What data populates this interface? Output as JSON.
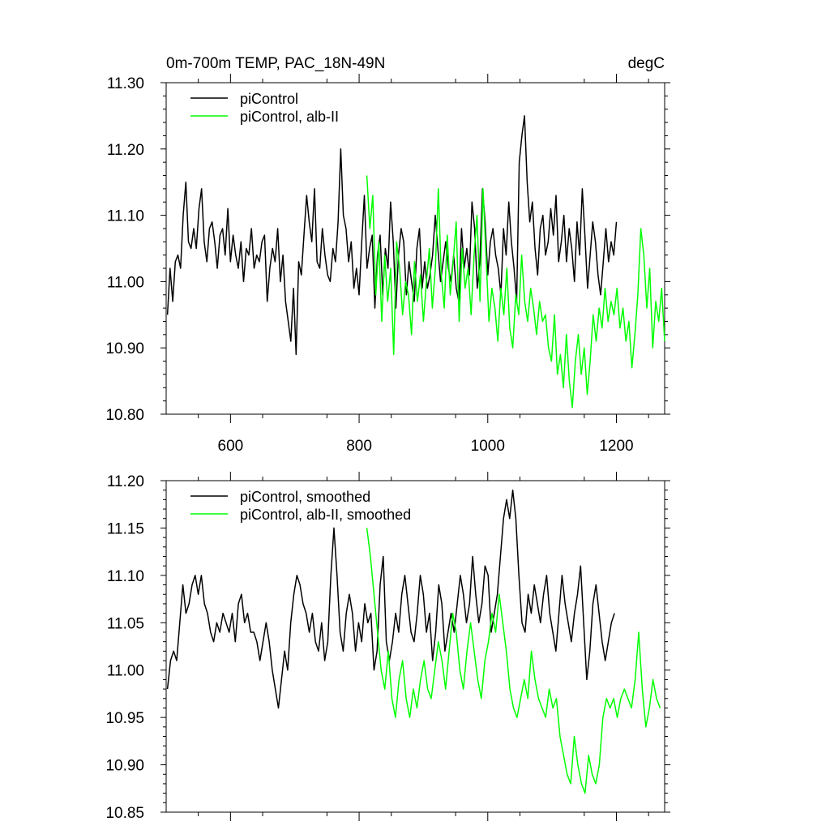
{
  "chart_data": [
    {
      "type": "line",
      "title": "0m-700m TEMP, PAC_18N-49N",
      "units": "degC",
      "xlabel": "",
      "ylabel": "",
      "xlim": [
        500,
        1275
      ],
      "ylim": [
        10.8,
        11.3
      ],
      "x_ticks": [
        600,
        800,
        1000,
        1200
      ],
      "x_tick_labels": [
        "600",
        "800",
        "1000",
        "1200"
      ],
      "y_ticks": [
        10.8,
        10.9,
        11.0,
        11.1,
        11.2,
        11.3
      ],
      "y_tick_labels": [
        "10.80",
        "10.90",
        "11.00",
        "11.10",
        "11.20",
        "11.30"
      ],
      "grid": false,
      "legend_position": "top-left",
      "series": [
        {
          "name": "piControl",
          "color": "#000000",
          "x_start": 502,
          "x_end": 1200,
          "values": [
            10.95,
            11.02,
            10.97,
            11.03,
            11.04,
            11.02,
            11.1,
            11.15,
            11.06,
            11.05,
            11.08,
            11.05,
            11.11,
            11.14,
            11.06,
            11.03,
            11.08,
            11.09,
            11.06,
            11.02,
            11.07,
            11.08,
            11.04,
            11.11,
            11.03,
            11.07,
            11.04,
            11.02,
            11.06,
            11.0,
            11.05,
            11.04,
            11.08,
            11.02,
            11.04,
            11.03,
            11.06,
            11.07,
            10.97,
            11.02,
            11.05,
            11.03,
            11.08,
            11.0,
            11.04,
            10.97,
            10.94,
            10.91,
            10.99,
            10.89,
            11.03,
            11.01,
            11.07,
            11.13,
            11.09,
            11.06,
            11.14,
            11.03,
            11.02,
            11.08,
            11.04,
            11.01,
            11.0,
            11.05,
            11.03,
            11.09,
            11.2,
            11.1,
            11.08,
            11.03,
            11.06,
            10.99,
            11.02,
            10.98,
            11.06,
            11.13,
            11.02,
            11.05,
            11.07,
            10.96,
            11.04,
            11.07,
            10.98,
            11.05,
            11.02,
            11.12,
            11.06,
            10.96,
            11.04,
            11.08,
            11.06,
            10.98,
            11.03,
            11.0,
            10.97,
            11.05,
            11.08,
            10.99,
            11.03,
            10.99,
            11.01,
            11.04,
            11.1,
            11.05,
            11.0,
            11.03,
            11.06,
            11.02,
            11.0,
            11.04,
            10.99,
            10.97,
            11.08,
            11.02,
            11.05,
            11.01,
            11.12,
            11.08,
            10.99,
            11.03,
            11.14,
            11.09,
            11.01,
            11.06,
            11.08,
            11.04,
            11.02,
            10.98,
            11.08,
            11.04,
            11.12,
            11.06,
            11.02,
            10.97,
            11.18,
            11.22,
            11.25,
            11.15,
            11.09,
            11.12,
            11.05,
            11.01,
            11.08,
            11.1,
            11.04,
            11.06,
            11.11,
            11.07,
            11.13,
            11.03,
            11.06,
            11.1,
            11.03,
            11.08,
            11.05,
            11.0,
            11.09,
            11.04,
            11.14,
            11.07,
            10.99,
            11.04,
            11.09,
            11.06,
            11.01,
            10.98,
            11.03,
            11.08,
            11.03,
            11.06,
            11.04,
            11.09
          ]
        },
        {
          "name": "piControl, alb-II",
          "color": "#00ff00",
          "x_start": 812,
          "x_end": 1275,
          "values": [
            11.16,
            11.08,
            11.13,
            10.98,
            11.06,
            10.94,
            11.04,
            10.97,
            11.02,
            10.89,
            11.06,
            11.02,
            10.95,
            11.0,
            10.98,
            10.92,
            11.03,
            10.97,
            11.01,
            10.94,
            11.0,
            11.05,
            10.96,
            11.02,
            11.14,
            11.01,
            10.96,
            11.07,
            10.98,
            11.03,
            11.09,
            10.94,
            11.05,
            10.99,
            11.02,
            10.95,
            11.04,
            11.1,
            10.97,
            11.14,
            11.04,
            10.94,
            10.99,
            10.96,
            10.91,
            10.99,
            10.95,
            11.02,
            10.93,
            10.9,
            10.98,
            10.95,
            11.04,
            10.97,
            10.94,
            10.99,
            10.96,
            10.92,
            10.97,
            10.94,
            10.95,
            10.9,
            10.88,
            10.95,
            10.86,
            10.89,
            10.84,
            10.92,
            10.85,
            10.81,
            10.88,
            10.92,
            10.86,
            10.9,
            10.83,
            10.88,
            10.95,
            10.91,
            10.96,
            10.93,
            10.99,
            10.94,
            10.97,
            10.95,
            10.99,
            10.93,
            10.96,
            10.91,
            10.94,
            10.87,
            10.92,
            10.98,
            11.08,
            11.04,
            10.96,
            11.02,
            10.9,
            10.97,
            10.94,
            10.99,
            10.91
          ]
        }
      ]
    },
    {
      "type": "line",
      "title": "",
      "xlabel": "",
      "ylabel": "",
      "xlim": [
        500,
        1275
      ],
      "ylim": [
        10.85,
        11.2
      ],
      "x_ticks": [
        600,
        800,
        1000,
        1200
      ],
      "y_ticks": [
        10.85,
        10.9,
        10.95,
        11.0,
        11.05,
        11.1,
        11.15,
        11.2
      ],
      "y_tick_labels": [
        "10.85",
        "10.90",
        "10.95",
        "11.00",
        "11.05",
        "11.10",
        "11.15",
        "11.20"
      ],
      "grid": false,
      "legend_position": "top-left",
      "series": [
        {
          "name": "piControl, smoothed",
          "color": "#000000",
          "x_start": 502,
          "x_end": 1197,
          "values": [
            10.98,
            11.01,
            11.02,
            11.01,
            11.05,
            11.09,
            11.06,
            11.07,
            11.09,
            11.1,
            11.08,
            11.1,
            11.07,
            11.06,
            11.04,
            11.03,
            11.05,
            11.04,
            11.06,
            11.05,
            11.04,
            11.06,
            11.03,
            11.07,
            11.08,
            11.05,
            11.06,
            11.04,
            11.04,
            11.03,
            11.01,
            11.03,
            11.05,
            11.03,
            11.0,
            10.98,
            10.96,
            10.99,
            11.02,
            11.0,
            11.05,
            11.08,
            11.1,
            11.09,
            11.07,
            11.06,
            11.04,
            11.06,
            11.03,
            11.02,
            11.05,
            11.01,
            11.03,
            11.1,
            11.15,
            11.1,
            11.04,
            11.02,
            11.06,
            11.08,
            11.06,
            11.02,
            11.05,
            11.03,
            11.07,
            11.05,
            11.06,
            11.0,
            11.02,
            11.09,
            11.12,
            11.03,
            11.01,
            11.03,
            11.06,
            11.04,
            11.08,
            11.1,
            11.07,
            11.04,
            11.03,
            11.06,
            11.1,
            11.08,
            11.04,
            11.06,
            11.01,
            11.04,
            11.09,
            11.07,
            11.02,
            11.04,
            11.06,
            11.04,
            11.07,
            11.1,
            11.08,
            11.05,
            11.07,
            11.12,
            11.08,
            11.05,
            11.07,
            11.11,
            11.1,
            11.04,
            11.06,
            11.08,
            11.12,
            11.16,
            11.18,
            11.16,
            11.19,
            11.16,
            11.1,
            11.05,
            11.04,
            11.08,
            11.06,
            11.09,
            11.07,
            11.05,
            11.08,
            11.1,
            11.06,
            11.04,
            11.02,
            11.06,
            11.1,
            11.07,
            11.05,
            11.03,
            11.06,
            11.08,
            11.11,
            11.05,
            10.99,
            11.02,
            11.07,
            11.09,
            11.06,
            11.03,
            11.01,
            11.03,
            11.05,
            11.06
          ]
        },
        {
          "name": "piControl, alb-II, smoothed",
          "color": "#00ff00",
          "x_start": 812,
          "x_end": 1268,
          "values": [
            11.15,
            11.12,
            11.08,
            11.04,
            11.0,
            10.98,
            11.02,
            10.97,
            10.95,
            10.99,
            11.01,
            10.97,
            10.95,
            10.98,
            10.96,
            10.99,
            11.01,
            10.98,
            10.97,
            11.0,
            11.03,
            11.01,
            10.98,
            11.02,
            11.06,
            11.04,
            11.0,
            10.98,
            11.02,
            11.05,
            11.02,
            10.99,
            10.97,
            11.01,
            11.03,
            11.06,
            11.04,
            11.08,
            11.05,
            11.02,
            10.98,
            10.96,
            10.95,
            10.97,
            10.99,
            10.97,
            11.02,
            10.99,
            10.97,
            10.96,
            10.95,
            10.98,
            10.96,
            10.97,
            10.93,
            10.91,
            10.89,
            10.88,
            10.93,
            10.9,
            10.88,
            10.87,
            10.91,
            10.89,
            10.88,
            10.9,
            10.95,
            10.97,
            10.96,
            10.97,
            10.95,
            10.97,
            10.98,
            10.97,
            10.96,
            10.99,
            11.04,
            10.98,
            10.94,
            10.96,
            10.99,
            10.97,
            10.96
          ]
        }
      ]
    }
  ]
}
